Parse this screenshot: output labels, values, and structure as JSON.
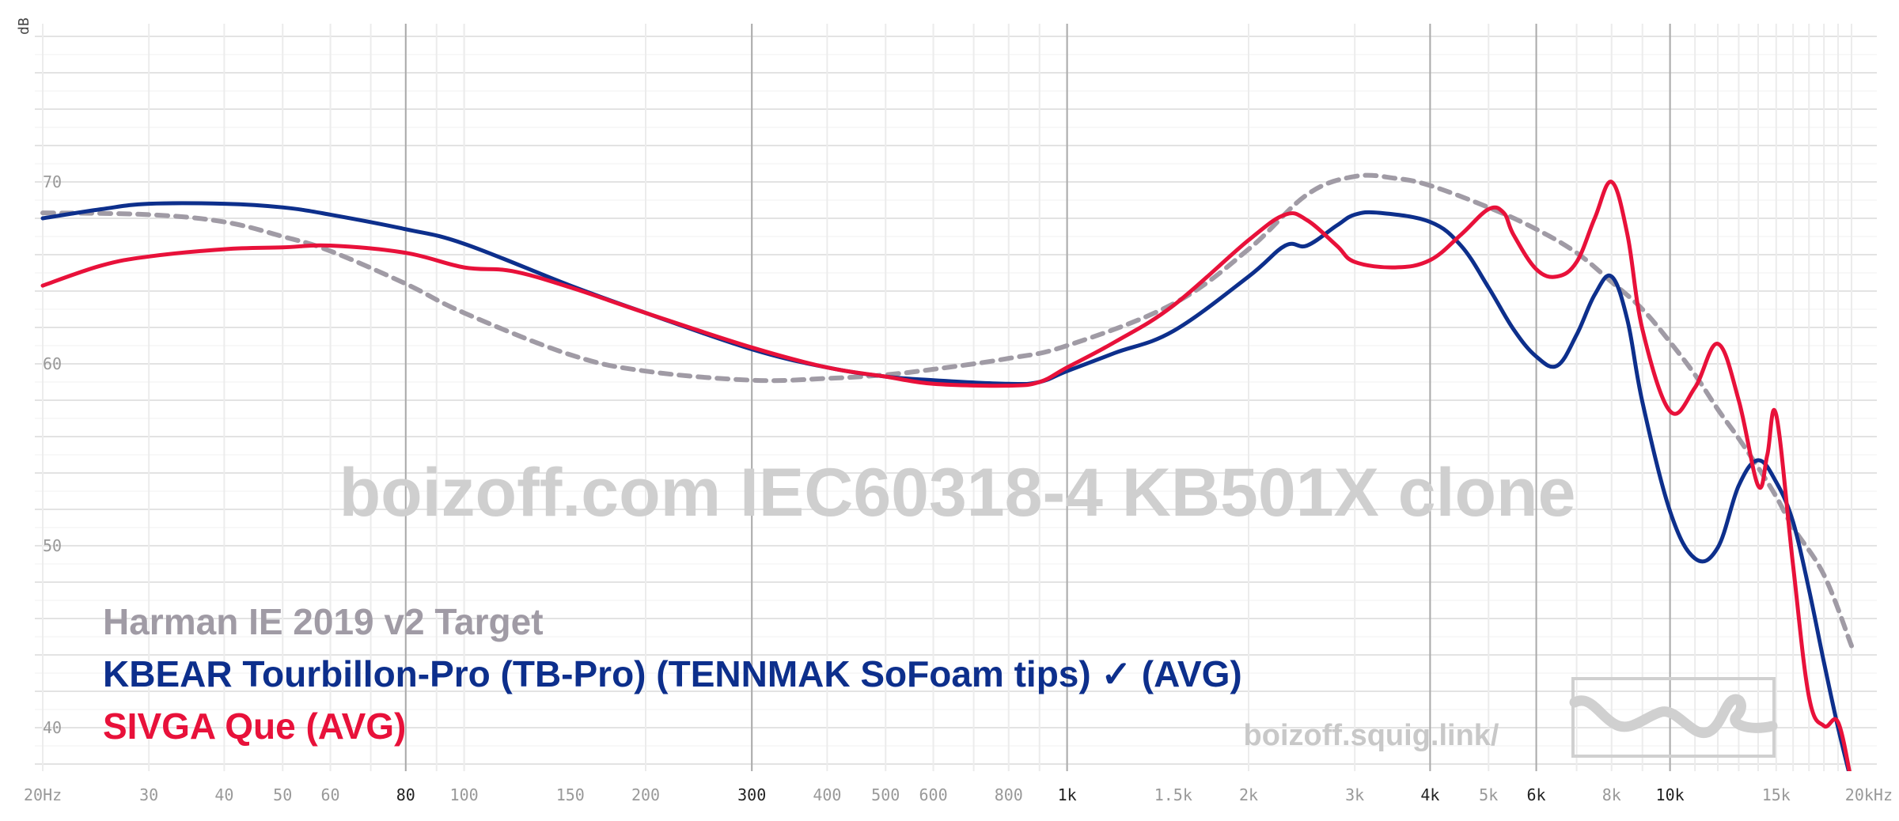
{
  "chart_data": {
    "type": "line",
    "title": "",
    "watermark": "boizoff.com IEC60318-4 KB501X clone",
    "site_label": "boizoff.squig.link/",
    "xlabel": "",
    "ylabel": "dB",
    "x_scale": "log",
    "xlim": [
      20,
      20000
    ],
    "ylim": [
      37,
      80
    ],
    "grid": true,
    "legend_position": "bottom-left",
    "x_ticks": [
      {
        "value": 20,
        "label": "20Hz",
        "major": false
      },
      {
        "value": 30,
        "label": "30",
        "major": false
      },
      {
        "value": 40,
        "label": "40",
        "major": false
      },
      {
        "value": 50,
        "label": "50",
        "major": false
      },
      {
        "value": 60,
        "label": "60",
        "major": false
      },
      {
        "value": 80,
        "label": "80",
        "major": true
      },
      {
        "value": 100,
        "label": "100",
        "major": false
      },
      {
        "value": 150,
        "label": "150",
        "major": false
      },
      {
        "value": 200,
        "label": "200",
        "major": false
      },
      {
        "value": 300,
        "label": "300",
        "major": true
      },
      {
        "value": 400,
        "label": "400",
        "major": false
      },
      {
        "value": 500,
        "label": "500",
        "major": false
      },
      {
        "value": 600,
        "label": "600",
        "major": false
      },
      {
        "value": 800,
        "label": "800",
        "major": false
      },
      {
        "value": 1000,
        "label": "1k",
        "major": true
      },
      {
        "value": 1500,
        "label": "1.5k",
        "major": false
      },
      {
        "value": 2000,
        "label": "2k",
        "major": false
      },
      {
        "value": 3000,
        "label": "3k",
        "major": false
      },
      {
        "value": 4000,
        "label": "4k",
        "major": true
      },
      {
        "value": 5000,
        "label": "5k",
        "major": false
      },
      {
        "value": 6000,
        "label": "6k",
        "major": true
      },
      {
        "value": 8000,
        "label": "8k",
        "major": false
      },
      {
        "value": 10000,
        "label": "10k",
        "major": true
      },
      {
        "value": 15000,
        "label": "15k",
        "major": false
      },
      {
        "value": 20000,
        "label": "20kHz",
        "major": false
      }
    ],
    "y_ticks": [
      {
        "value": 70,
        "label": "70"
      },
      {
        "value": 60,
        "label": "60"
      },
      {
        "value": 50,
        "label": "50"
      },
      {
        "value": 40,
        "label": "40"
      }
    ],
    "series": [
      {
        "name": "Harman IE 2019 v2 Target",
        "color": "#a09ba5",
        "dashed": true,
        "x": [
          20,
          30,
          40,
          50,
          60,
          80,
          100,
          150,
          200,
          300,
          400,
          500,
          600,
          800,
          1000,
          1500,
          2000,
          2500,
          3000,
          3500,
          4000,
          5000,
          6000,
          7000,
          8000,
          9000,
          10000,
          11000,
          12000,
          13000,
          14000,
          15000,
          16000,
          18000,
          20000
        ],
        "y": [
          68.3,
          68.2,
          67.8,
          67.0,
          66.2,
          64.4,
          62.8,
          60.5,
          59.6,
          59.1,
          59.2,
          59.4,
          59.7,
          60.3,
          61.0,
          63.3,
          66.3,
          69.3,
          70.3,
          70.2,
          69.8,
          68.6,
          67.4,
          66.1,
          64.5,
          63.0,
          61.2,
          59.4,
          57.5,
          55.9,
          54.3,
          52.7,
          51.0,
          48.4,
          44.5
        ]
      },
      {
        "name": "KBEAR Tourbillon-Pro (TB-Pro) (TENNMAK SoFoam tips) ✓ (AVG)",
        "color": "#0d2f8c",
        "dashed": false,
        "x": [
          20,
          25,
          30,
          40,
          50,
          60,
          80,
          100,
          150,
          200,
          300,
          400,
          500,
          600,
          800,
          900,
          1000,
          1200,
          1500,
          2000,
          2300,
          2500,
          2800,
          3000,
          3300,
          4000,
          4500,
          5000,
          5500,
          6000,
          6500,
          7000,
          7500,
          8000,
          8500,
          9000,
          10000,
          11000,
          12000,
          13000,
          14000,
          15000,
          16000,
          17000,
          18000,
          19000,
          20000
        ],
        "y": [
          68.0,
          68.5,
          68.8,
          68.8,
          68.6,
          68.2,
          67.4,
          66.6,
          64.3,
          62.8,
          60.8,
          59.8,
          59.3,
          59.1,
          58.9,
          59.0,
          59.6,
          60.6,
          61.8,
          64.8,
          66.5,
          66.5,
          67.6,
          68.2,
          68.3,
          67.8,
          66.5,
          64.2,
          61.9,
          60.4,
          59.9,
          61.6,
          63.8,
          64.8,
          62.4,
          57.9,
          51.9,
          49.3,
          49.9,
          53.3,
          54.7,
          53.5,
          51.3,
          47.6,
          43.6,
          40.0,
          37.0
        ]
      },
      {
        "name": "SIVGA Que (AVG)",
        "color": "#e8113a",
        "dashed": false,
        "x": [
          20,
          25,
          30,
          40,
          50,
          60,
          80,
          100,
          120,
          150,
          200,
          300,
          400,
          500,
          600,
          800,
          900,
          1000,
          1200,
          1500,
          2000,
          2300,
          2500,
          2800,
          3000,
          3500,
          4000,
          4500,
          5000,
          5300,
          5500,
          6000,
          6500,
          7000,
          7500,
          8000,
          8500,
          9000,
          10000,
          11000,
          12000,
          13000,
          14000,
          14500,
          15000,
          16000,
          17000,
          18000,
          19000,
          20000
        ],
        "y": [
          64.3,
          65.4,
          65.9,
          66.3,
          66.4,
          66.5,
          66.1,
          65.3,
          65.1,
          64.2,
          62.8,
          60.9,
          59.8,
          59.3,
          58.9,
          58.8,
          59.0,
          59.8,
          61.2,
          63.2,
          66.8,
          68.2,
          67.9,
          66.5,
          65.6,
          65.3,
          65.7,
          67.1,
          68.5,
          68.3,
          67.1,
          65.2,
          64.8,
          65.6,
          68.0,
          70.0,
          67.1,
          61.9,
          57.4,
          58.7,
          61.1,
          58.0,
          53.3,
          55.0,
          57.2,
          48.9,
          41.7,
          40.1,
          40.3,
          37.0
        ]
      }
    ]
  }
}
